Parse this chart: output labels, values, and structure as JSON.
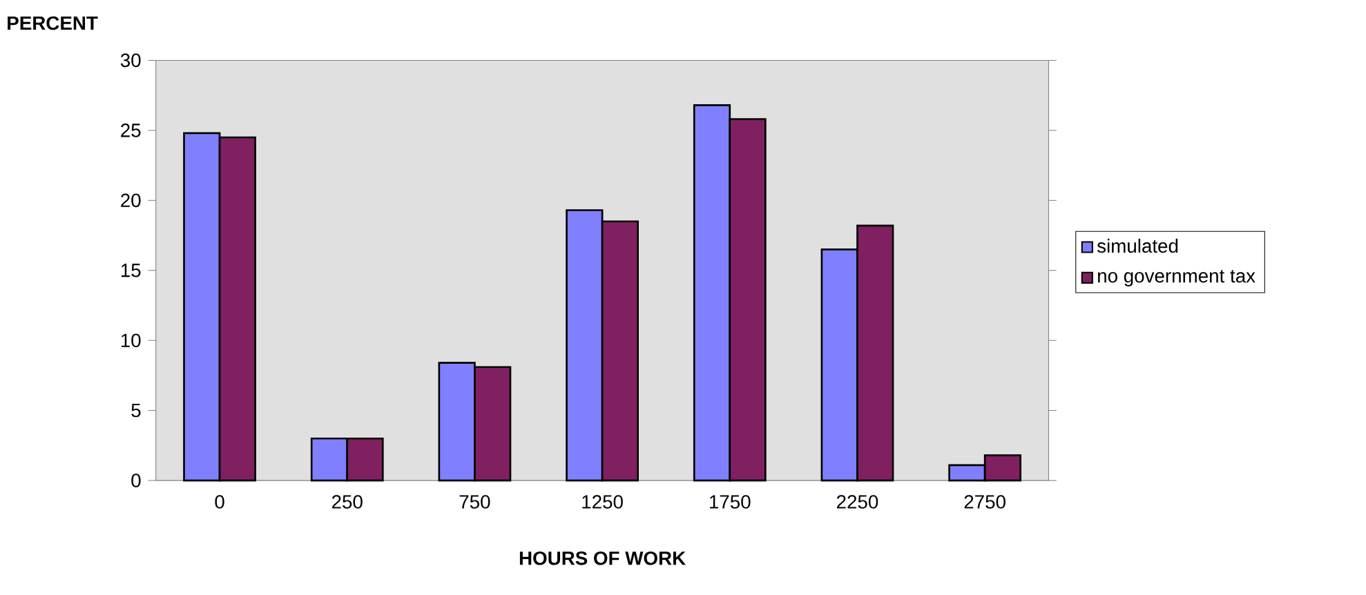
{
  "chart_data": {
    "type": "bar",
    "xlabel": "HOURS OF WORK",
    "ylabel": "PERCENT",
    "categories": [
      "0",
      "250",
      "750",
      "1250",
      "1750",
      "2250",
      "2750"
    ],
    "series": [
      {
        "name": "simulated",
        "color": "#8080ff",
        "values": [
          24.8,
          3.0,
          8.4,
          19.3,
          26.8,
          16.5,
          1.1
        ]
      },
      {
        "name": "no government tax",
        "color": "#802060",
        "values": [
          24.5,
          3.0,
          8.1,
          18.5,
          25.8,
          18.2,
          1.8
        ]
      }
    ],
    "ylim": [
      0,
      30
    ],
    "yticks": [
      0,
      5,
      10,
      15,
      20,
      25,
      30
    ],
    "grid": false,
    "legend": "right"
  }
}
